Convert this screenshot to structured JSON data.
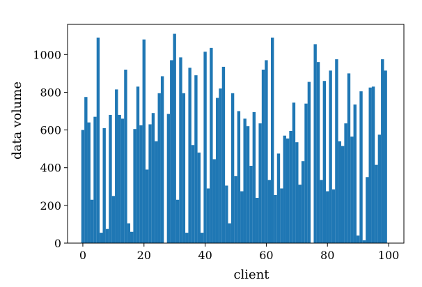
{
  "chart_data": {
    "type": "bar",
    "xlabel": "client",
    "ylabel": "data volume",
    "xlim": [
      -5,
      105
    ],
    "ylim": [
      0,
      1160
    ],
    "xticks": [
      0,
      20,
      40,
      60,
      80,
      100
    ],
    "yticks": [
      0,
      200,
      400,
      600,
      800,
      1000
    ],
    "grid": false,
    "bar_color": "#1f77b4",
    "x": [
      0,
      1,
      2,
      3,
      4,
      5,
      6,
      7,
      8,
      9,
      10,
      11,
      12,
      13,
      14,
      15,
      16,
      17,
      18,
      19,
      20,
      21,
      22,
      23,
      24,
      25,
      26,
      27,
      28,
      29,
      30,
      31,
      32,
      33,
      34,
      35,
      36,
      37,
      38,
      39,
      40,
      41,
      42,
      43,
      44,
      45,
      46,
      47,
      48,
      49,
      50,
      51,
      52,
      53,
      54,
      55,
      56,
      57,
      58,
      59,
      60,
      61,
      62,
      63,
      64,
      65,
      66,
      67,
      68,
      69,
      70,
      71,
      72,
      73,
      74,
      75,
      76,
      77,
      78,
      79,
      80,
      81,
      82,
      83,
      84,
      85,
      86,
      87,
      88,
      89,
      90,
      91,
      92,
      93,
      94,
      95,
      96,
      97,
      98,
      99
    ],
    "values": [
      600,
      775,
      640,
      230,
      670,
      1090,
      55,
      610,
      75,
      680,
      250,
      815,
      680,
      660,
      920,
      105,
      60,
      605,
      830,
      625,
      1080,
      390,
      630,
      690,
      540,
      795,
      885,
      0,
      685,
      970,
      1110,
      230,
      985,
      795,
      55,
      930,
      520,
      890,
      480,
      55,
      1015,
      290,
      1035,
      445,
      770,
      820,
      935,
      305,
      105,
      795,
      355,
      700,
      275,
      660,
      620,
      410,
      695,
      240,
      635,
      920,
      970,
      335,
      1090,
      255,
      475,
      290,
      570,
      555,
      595,
      745,
      535,
      310,
      435,
      740,
      855,
      0,
      1055,
      960,
      335,
      860,
      275,
      915,
      285,
      975,
      540,
      515,
      635,
      900,
      565,
      735,
      40,
      805,
      15,
      350,
      825,
      830,
      415,
      575,
      975,
      915
    ]
  }
}
